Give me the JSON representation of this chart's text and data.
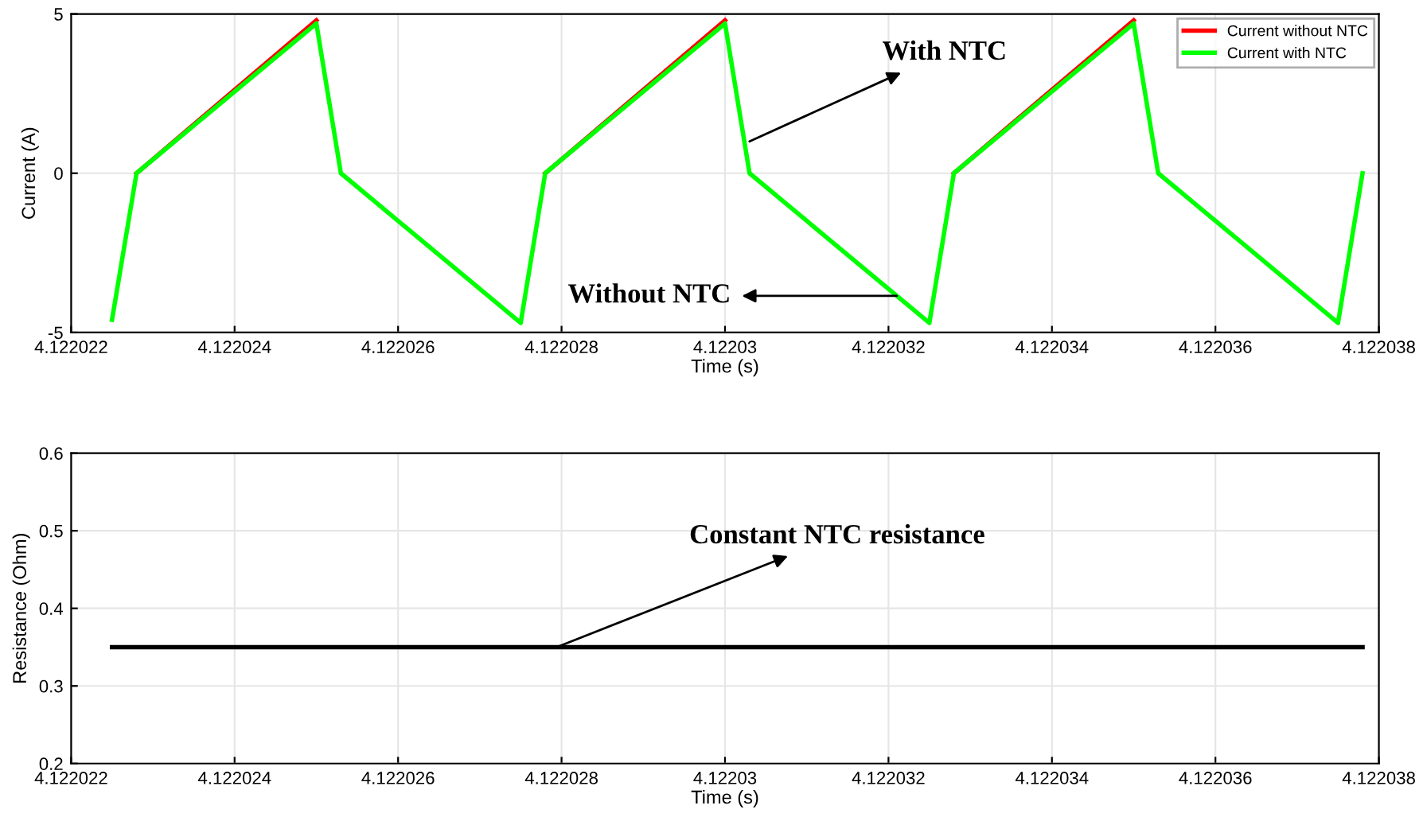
{
  "chart_data": [
    {
      "type": "line",
      "xlabel": "Time (s)",
      "ylabel": "Current (A)",
      "x": [
        4.1220225,
        4.1220228,
        4.122025,
        4.1220253,
        4.1220275,
        4.1220278,
        4.12203,
        4.1220303,
        4.1220325,
        4.1220328,
        4.122035,
        4.1220353,
        4.1220375,
        4.1220378
      ],
      "series": [
        {
          "name": "Current without NTC",
          "color": "#ff0000",
          "values": [
            null,
            0,
            4.8,
            null,
            null,
            0,
            4.8,
            null,
            null,
            0,
            4.8,
            null,
            null,
            null
          ]
        },
        {
          "name": "Current with NTC",
          "color": "#00ff00",
          "values": [
            -4.6,
            0,
            4.7,
            0,
            -4.7,
            0,
            4.7,
            0,
            -4.7,
            0,
            4.7,
            0,
            -4.7,
            0
          ]
        }
      ],
      "xlim": [
        4.122022,
        4.122038
      ],
      "xticks": [
        4.122022,
        4.122024,
        4.122026,
        4.122028,
        4.12203,
        4.122032,
        4.122034,
        4.122036,
        4.122038
      ],
      "ylim": [
        -5,
        5
      ],
      "yticks": [
        -5,
        0,
        5
      ],
      "grid": true,
      "legend": "top right",
      "annotations": [
        {
          "text": "With NTC",
          "x": 4.1220303,
          "y": 1.0
        },
        {
          "text": "Without NTC",
          "x": 4.1220321,
          "y": -3.85
        }
      ]
    },
    {
      "type": "line",
      "xlabel": "Time (s)",
      "ylabel": "Resistance (Ohm)",
      "x": [
        4.1220225,
        4.1220378
      ],
      "series": [
        {
          "color": "#000000",
          "values": [
            0.35,
            0.35
          ]
        }
      ],
      "xlim": [
        4.122022,
        4.122038
      ],
      "xticks": [
        4.122022,
        4.122024,
        4.122026,
        4.122028,
        4.12203,
        4.122032,
        4.122034,
        4.122036,
        4.122038
      ],
      "ylim": [
        0.2,
        0.6
      ],
      "yticks": [
        0.2,
        0.3,
        0.4,
        0.5,
        0.6
      ],
      "grid": true,
      "legend": false,
      "annotations": [
        {
          "text": "Constant NTC resistance",
          "x": 4.12202794,
          "y": 0.35
        }
      ]
    }
  ]
}
